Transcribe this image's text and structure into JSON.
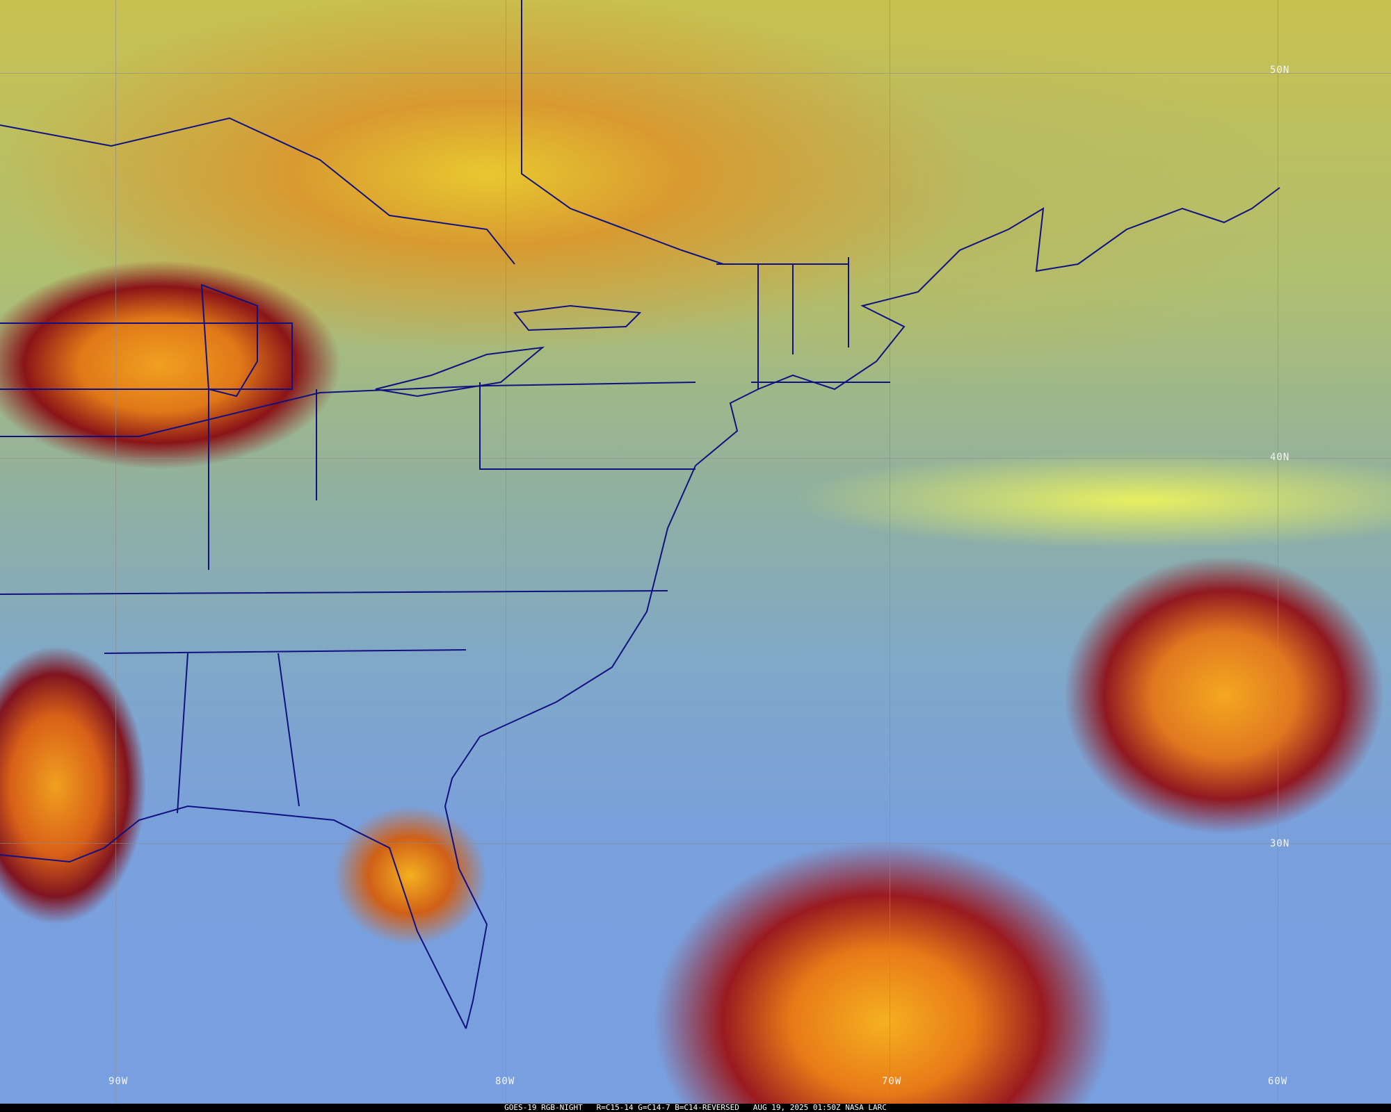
{
  "caption": "GOES-19 RGB-NIGHT   R=C15-14 G=C14-7 B=C14-REVERSED   AUG 19, 2025 01:50Z NASA LARC",
  "latitude_labels": [
    "50N",
    "40N",
    "30N"
  ],
  "longitude_labels": [
    "90W",
    "80W",
    "70W",
    "60W"
  ],
  "colors": {
    "border_lines": "#101080",
    "gridlines": "#8c8c8c",
    "deep_cloud": "#f0a020",
    "cloud_edge": "#8a1418",
    "clear_ocean": "#78a0e0"
  }
}
